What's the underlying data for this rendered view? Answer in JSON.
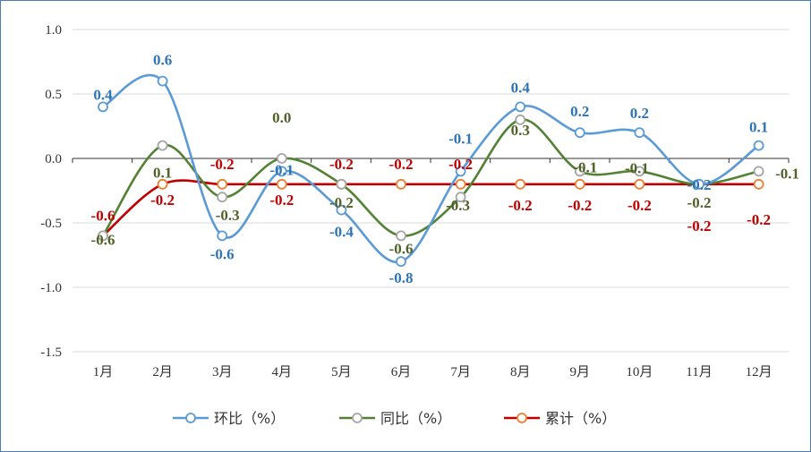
{
  "chart_data": {
    "type": "line",
    "title": "",
    "xlabel": "",
    "ylabel": "",
    "categories": [
      "1月",
      "2月",
      "3月",
      "4月",
      "5月",
      "6月",
      "7月",
      "8月",
      "9月",
      "10月",
      "11月",
      "12月"
    ],
    "ylim": [
      -1.5,
      1.0
    ],
    "yticks": [
      "1.0",
      "0.5",
      "0.0",
      "-0.5",
      "-1.0",
      "-1.5"
    ],
    "grid": true,
    "legend_position": "bottom",
    "series": [
      {
        "name": "环比（%）",
        "color": "#5b9bd5",
        "label_color": "#2e75b6",
        "marker_color": "#5b9bd5",
        "values": [
          0.4,
          0.6,
          -0.6,
          -0.1,
          -0.4,
          -0.8,
          -0.1,
          0.4,
          0.2,
          0.2,
          -0.2,
          0.1
        ],
        "labels": [
          "0.4",
          "0.6",
          "-0.6",
          "-0.1",
          "-0.4",
          "-0.8",
          "-0.1",
          "0.4",
          "0.2",
          "0.2",
          "-0.2",
          "0.1"
        ]
      },
      {
        "name": "同比（%）",
        "color": "#548235",
        "label_color": "#4f6228",
        "marker_color": "#a5a5a5",
        "values": [
          -0.6,
          0.1,
          -0.3,
          0.0,
          -0.2,
          -0.6,
          -0.3,
          0.3,
          -0.1,
          -0.1,
          -0.2,
          -0.1
        ],
        "labels": [
          "-0.6",
          "0.1",
          "-0.3",
          "0.0",
          "-0.2",
          "-0.6",
          "-0.3",
          "0.3",
          "-0.1",
          "-0.1",
          "-0.2",
          "-0.1"
        ]
      },
      {
        "name": "累计（%）",
        "color": "#c00000",
        "label_color": "#c00000",
        "marker_color": "#ed7d31",
        "values": [
          -0.6,
          -0.2,
          -0.2,
          -0.2,
          -0.2,
          -0.2,
          -0.2,
          -0.2,
          -0.2,
          -0.2,
          -0.2,
          -0.2
        ],
        "labels": [
          "-0.6",
          "-0.2",
          "-0.2",
          "-0.2",
          "-0.2",
          "-0.2",
          "-0.2",
          "-0.2",
          "-0.2",
          "-0.2",
          "-0.2",
          "-0.2"
        ]
      }
    ]
  }
}
